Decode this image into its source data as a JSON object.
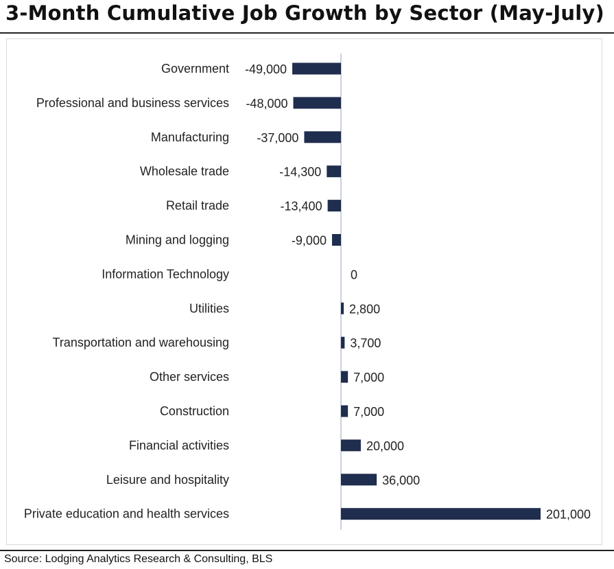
{
  "header": {
    "title": "3-Month Cumulative Job Growth by Sector (May-July)"
  },
  "footer": {
    "source": "Source: Lodging Analytics Research & Consulting, BLS"
  },
  "colors": {
    "bar": "#1f2d4e",
    "axis": "#a6b3c9"
  },
  "chart_data": {
    "type": "bar",
    "orientation": "horizontal",
    "title": "3-Month Cumulative Job Growth by Sector (May-July)",
    "xlabel": "",
    "ylabel": "",
    "categories": [
      "Government",
      "Professional and business services",
      "Manufacturing",
      "Wholesale trade",
      "Retail trade",
      "Mining and logging",
      "Information Technology",
      "Utilities",
      "Transportation and warehousing",
      "Other services",
      "Construction",
      "Financial activities",
      "Leisure and hospitality",
      "Private education and health services"
    ],
    "values": [
      -49000,
      -48000,
      -37000,
      -14300,
      -13400,
      -9000,
      0,
      2800,
      3700,
      7000,
      7000,
      20000,
      36000,
      201000
    ],
    "data_labels": [
      "-49,000",
      "-48,000",
      "-37,000",
      "-14,300",
      "-13,400",
      "-9,000",
      "0",
      "2,800",
      "3,700",
      "7,000",
      "7,000",
      "20,000",
      "36,000",
      "201,000"
    ],
    "xlim": [
      -49000,
      201000
    ],
    "grid": false,
    "legend": "none"
  }
}
